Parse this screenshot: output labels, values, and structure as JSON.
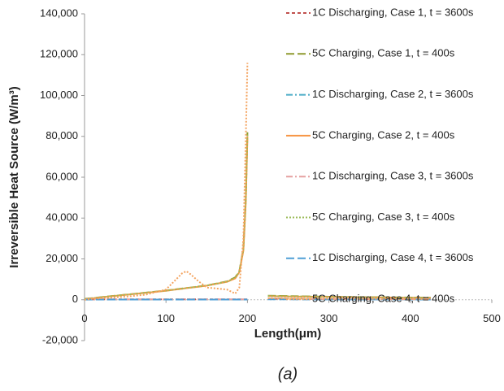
{
  "chart_data": {
    "type": "line",
    "xlabel": "Length(μm)",
    "ylabel": "Irreversible Heat Source (W/m³)",
    "caption": "(a)",
    "x": [
      0,
      10,
      25,
      50,
      75,
      100,
      110,
      120,
      125,
      130,
      140,
      150,
      175,
      185,
      190,
      195,
      198,
      200,
      212,
      225,
      250,
      300,
      350,
      400,
      425
    ],
    "xlim": [
      0,
      500
    ],
    "xticks": [
      0,
      100,
      200,
      300,
      400,
      500
    ],
    "ylim": [
      -20000,
      140000
    ],
    "yticks": [
      {
        "value": -20000,
        "label": "-20,000"
      },
      0,
      {
        "value": 20000,
        "label": "20,000"
      },
      {
        "value": 40000,
        "label": "40,000"
      },
      {
        "value": 60000,
        "label": "60,000"
      },
      {
        "value": 80000,
        "label": "80,000"
      },
      {
        "value": 100000,
        "label": "100,000"
      },
      {
        "value": 120000,
        "label": "120,000"
      },
      {
        "value": 140000,
        "label": "140,000"
      }
    ],
    "grid": false,
    "legend": "right",
    "series": [
      {
        "name": "1C Discharging, Case 1, t = 3600s",
        "color": "#c0504d",
        "dash": "dashed",
        "values": [
          100,
          150,
          200,
          200,
          200,
          200,
          200,
          200,
          200,
          200,
          200,
          200,
          200,
          200,
          200,
          200,
          200,
          200,
          null,
          500,
          400,
          300,
          250,
          200,
          200
        ]
      },
      {
        "name": "5C Charging, Case 1, t = 400s",
        "color": "#8f9a2e",
        "dash": "longdash",
        "values": [
          500,
          800,
          1500,
          2500,
          3500,
          4500,
          5000,
          5500,
          5800,
          6000,
          6500,
          7000,
          9000,
          11000,
          14000,
          25000,
          50000,
          82000,
          null,
          2000,
          1800,
          1500,
          1300,
          1100,
          1000
        ]
      },
      {
        "name": "1C Discharging, Case 2, t = 3600s",
        "color": "#4bacc6",
        "dash": "dashdot",
        "values": [
          80,
          120,
          150,
          150,
          150,
          150,
          150,
          150,
          150,
          150,
          150,
          150,
          150,
          150,
          150,
          150,
          150,
          150,
          null,
          400,
          350,
          250,
          200,
          150,
          150
        ]
      },
      {
        "name": "5C Charging, Case 2, t = 400s",
        "color": "#f79646",
        "dash": "solid",
        "values": [
          400,
          700,
          1400,
          2400,
          3400,
          4400,
          4900,
          5400,
          5700,
          5900,
          6400,
          6900,
          8800,
          10500,
          13500,
          24000,
          48000,
          80000,
          null,
          1800,
          1600,
          1400,
          1200,
          1000,
          900
        ]
      },
      {
        "name": "1C Discharging, Case 3, t = 3600s",
        "color": "#e6a0a0",
        "dash": "dashdot",
        "values": [
          90,
          130,
          170,
          170,
          170,
          170,
          170,
          170,
          170,
          170,
          170,
          170,
          170,
          170,
          170,
          170,
          170,
          170,
          null,
          450,
          380,
          280,
          220,
          180,
          180
        ]
      },
      {
        "name": "5C Charging, Case 3, t = 400s",
        "color": "#9bbb59",
        "dash": "dotted",
        "values": [
          450,
          750,
          1450,
          2450,
          3450,
          4450,
          4950,
          5450,
          5750,
          5950,
          6450,
          6950,
          8900,
          10800,
          13800,
          24500,
          49000,
          81000,
          null,
          1900,
          1700,
          1450,
          1250,
          1050,
          950
        ]
      },
      {
        "name": "1C Discharging, Case 4, t = 3600s",
        "color": "#4f9fd6",
        "dash": "longdash",
        "values": [
          50,
          80,
          100,
          100,
          100,
          100,
          100,
          100,
          100,
          100,
          100,
          100,
          100,
          100,
          100,
          100,
          100,
          100,
          null,
          200,
          180,
          150,
          120,
          100,
          100
        ]
      },
      {
        "name": "5C Charging, Case 4, t = 400s",
        "color": "#f4a460",
        "dash": "dotted",
        "values": [
          0,
          500,
          800,
          1500,
          2500,
          5000,
          9000,
          13000,
          14000,
          12500,
          9000,
          6000,
          5000,
          3000,
          6000,
          30000,
          80000,
          116000,
          null,
          700,
          600,
          500,
          400,
          300,
          300
        ]
      }
    ]
  }
}
